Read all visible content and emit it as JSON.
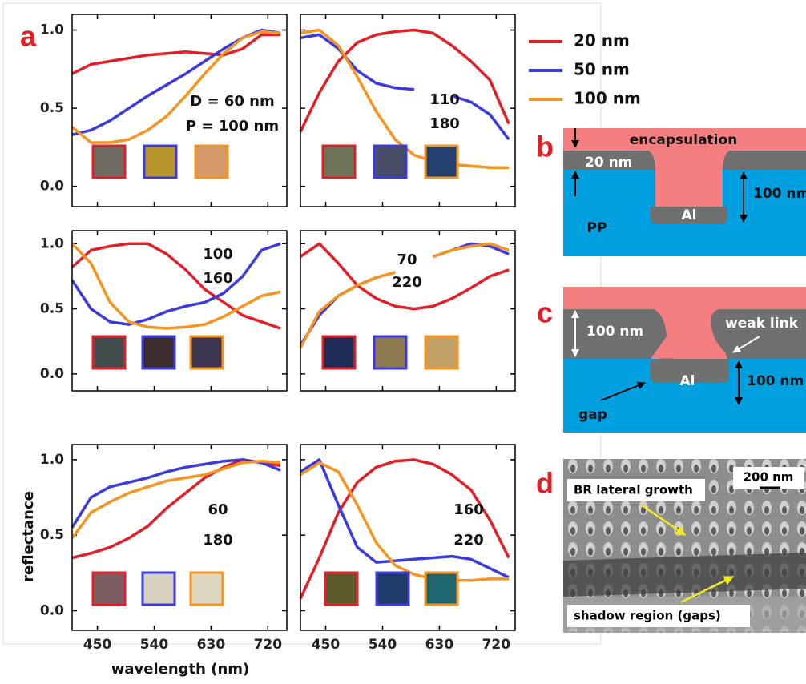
{
  "legend": [
    {
      "name": "20 nm",
      "color": "#e41e26"
    },
    {
      "name": "50 nm",
      "color": "#3a3ae0"
    },
    {
      "name": "100 nm",
      "color": "#f7941d"
    }
  ],
  "panel_labels": [
    "a",
    "b",
    "c",
    "d"
  ],
  "diagram_b": {
    "layer_top": "encapsulation",
    "thickness": "20 nm",
    "depth": "100 nm",
    "metal": "Al",
    "substrate": "PP"
  },
  "diagram_c": {
    "thickness": "100 nm",
    "defect": "weak link",
    "metal": "Al",
    "depth": "100 nm",
    "gap": "gap"
  },
  "image_d": {
    "scale_bar": "200 nm",
    "label_1": "BR lateral growth",
    "label_2": "shadow region (gaps)"
  },
  "chart_data": [
    {
      "type": "line",
      "annotations": [
        "D = 60 nm",
        "P = 100 nm"
      ],
      "swatch_colors": [
        "#6f6a60",
        "#b8962e",
        "#d49a6a"
      ],
      "x": [
        410,
        440,
        470,
        500,
        530,
        560,
        590,
        620,
        650,
        680,
        710,
        740
      ],
      "xlim": [
        410,
        750
      ],
      "xticks": [
        450,
        540,
        630,
        720
      ],
      "ylim": [
        -0.13,
        1.1
      ],
      "yticks": [
        {
          "value": 0,
          "label": "0.0"
        },
        {
          "value": 0.5,
          "label": "0.5"
        },
        {
          "value": 1,
          "label": "1.0"
        }
      ],
      "series": [
        {
          "color": "#e41e26",
          "values": [
            0.72,
            0.78,
            0.8,
            0.82,
            0.84,
            0.85,
            0.86,
            0.85,
            0.84,
            0.88,
            0.97,
            0.97
          ]
        },
        {
          "color": "#3a3ae0",
          "values": [
            0.33,
            0.36,
            0.42,
            0.5,
            0.58,
            0.65,
            0.72,
            0.8,
            0.88,
            0.95,
            1.0,
            0.98
          ]
        },
        {
          "color": "#f7941d",
          "values": [
            0.38,
            0.28,
            0.28,
            0.3,
            0.36,
            0.45,
            0.58,
            0.72,
            0.85,
            0.95,
            0.99,
            0.98
          ]
        }
      ]
    },
    {
      "type": "line",
      "annotations": [
        "110",
        "180"
      ],
      "swatch_colors": [
        "#6d7356",
        "#4a4d68",
        "#23406e"
      ],
      "x": [
        410,
        440,
        470,
        500,
        530,
        560,
        590,
        620,
        650,
        680,
        710,
        740
      ],
      "xlim": [
        410,
        750
      ],
      "xticks": [
        450,
        540,
        630,
        720
      ],
      "ylim": [
        -0.13,
        1.1
      ],
      "yticks": [
        0,
        0.5,
        1
      ],
      "series": [
        {
          "color": "#e41e26",
          "values": [
            0.35,
            0.6,
            0.8,
            0.92,
            0.97,
            0.99,
            1.0,
            0.98,
            0.9,
            0.8,
            0.68,
            0.4
          ]
        },
        {
          "color": "#3a3ae0",
          "values": [
            0.95,
            0.97,
            0.88,
            0.74,
            0.66,
            0.63,
            0.62,
            null,
            0.58,
            0.54,
            0.46,
            0.3
          ]
        },
        {
          "color": "#f7941d",
          "values": [
            0.98,
            1.0,
            0.9,
            0.7,
            0.48,
            0.3,
            0.2,
            0.16,
            0.14,
            0.13,
            0.12,
            0.12
          ]
        }
      ]
    },
    {
      "type": "line",
      "annotations": [
        "100",
        "160"
      ],
      "swatch_colors": [
        "#434c4c",
        "#3b2c2e",
        "#3e3550"
      ],
      "x": [
        410,
        440,
        470,
        500,
        530,
        560,
        590,
        620,
        650,
        680,
        710,
        740
      ],
      "xlim": [
        410,
        750
      ],
      "xticks": [
        450,
        540,
        630,
        720
      ],
      "ylim": [
        -0.13,
        1.1
      ],
      "yticks": [
        {
          "value": 0,
          "label": "0.0"
        },
        {
          "value": 0.5,
          "label": "0.5"
        },
        {
          "value": 1,
          "label": "1.0"
        }
      ],
      "series": [
        {
          "color": "#e41e26",
          "values": [
            0.82,
            0.95,
            0.98,
            1.0,
            1.0,
            0.92,
            0.8,
            0.65,
            0.55,
            0.45,
            0.4,
            0.35
          ]
        },
        {
          "color": "#3a3ae0",
          "values": [
            0.72,
            0.5,
            0.4,
            0.38,
            0.42,
            0.48,
            0.52,
            0.55,
            0.62,
            0.75,
            0.95,
            1.0
          ]
        },
        {
          "color": "#f7941d",
          "values": [
            1.0,
            0.85,
            0.55,
            0.4,
            0.36,
            0.35,
            0.36,
            0.38,
            0.44,
            0.52,
            0.6,
            0.63
          ]
        }
      ]
    },
    {
      "type": "line",
      "annotations": [
        "70",
        "220"
      ],
      "swatch_colors": [
        "#1f2c55",
        "#8f7a52",
        "#c2a166"
      ],
      "x": [
        410,
        440,
        470,
        500,
        530,
        560,
        590,
        620,
        650,
        680,
        710,
        740
      ],
      "xlim": [
        410,
        750
      ],
      "xticks": [
        450,
        540,
        630,
        720
      ],
      "ylim": [
        -0.13,
        1.1
      ],
      "yticks": [
        0,
        0.5,
        1
      ],
      "series": [
        {
          "color": "#e41e26",
          "values": [
            0.9,
            1.0,
            0.85,
            0.68,
            0.58,
            0.52,
            0.5,
            0.52,
            0.58,
            0.66,
            0.75,
            0.8
          ]
        },
        {
          "color": "#3a3ae0",
          "values": [
            0.22,
            0.45,
            0.6,
            0.68,
            0.74,
            0.78,
            null,
            0.9,
            0.95,
            1.0,
            0.98,
            0.92
          ]
        },
        {
          "color": "#f7941d",
          "values": [
            0.2,
            0.48,
            0.6,
            0.68,
            0.74,
            0.78,
            null,
            0.9,
            0.95,
            0.98,
            1.0,
            0.95
          ]
        }
      ]
    },
    {
      "type": "line",
      "annotations": [
        "60",
        "180"
      ],
      "swatch_colors": [
        "#7c5e62",
        "#d6d2bd",
        "#ddd6c0"
      ],
      "xlabel": "wavelength (nm)",
      "ylabel": "reflectance",
      "x": [
        410,
        440,
        470,
        500,
        530,
        560,
        590,
        620,
        650,
        680,
        710,
        740
      ],
      "xlim": [
        410,
        750
      ],
      "xticks": [
        450,
        540,
        630,
        720
      ],
      "ylim": [
        -0.13,
        1.1
      ],
      "yticks": [
        {
          "value": 0,
          "label": "0.0"
        },
        {
          "value": 0.5,
          "label": "0.5"
        },
        {
          "value": 1,
          "label": "1.0"
        }
      ],
      "series": [
        {
          "color": "#e41e26",
          "values": [
            0.35,
            0.38,
            0.42,
            0.48,
            0.56,
            0.68,
            0.78,
            0.88,
            0.95,
            1.0,
            0.98,
            0.96
          ]
        },
        {
          "color": "#3a3ae0",
          "values": [
            0.55,
            0.75,
            0.82,
            0.85,
            0.88,
            0.92,
            0.95,
            0.97,
            0.99,
            1.0,
            0.98,
            0.93
          ]
        },
        {
          "color": "#f7941d",
          "values": [
            0.48,
            0.65,
            0.72,
            0.78,
            0.82,
            0.86,
            0.88,
            0.9,
            0.94,
            0.98,
            0.99,
            0.98
          ]
        }
      ]
    },
    {
      "type": "line",
      "annotations": [
        "160",
        "220"
      ],
      "swatch_colors": [
        "#5a5a2a",
        "#1d3b66",
        "#1f6670"
      ],
      "x": [
        410,
        440,
        470,
        500,
        530,
        560,
        590,
        620,
        650,
        680,
        710,
        740
      ],
      "xlim": [
        410,
        750
      ],
      "xticks": [
        450,
        540,
        630,
        720
      ],
      "ylim": [
        -0.13,
        1.1
      ],
      "yticks": [
        0,
        0.5,
        1
      ],
      "series": [
        {
          "color": "#e41e26",
          "values": [
            0.08,
            0.35,
            0.65,
            0.85,
            0.95,
            0.99,
            1.0,
            0.97,
            0.9,
            0.8,
            0.6,
            0.35
          ]
        },
        {
          "color": "#3a3ae0",
          "values": [
            0.92,
            1.0,
            0.7,
            0.42,
            0.32,
            0.33,
            0.34,
            0.35,
            0.36,
            0.34,
            0.28,
            0.22
          ]
        },
        {
          "color": "#f7941d",
          "values": [
            0.9,
            0.98,
            0.92,
            0.7,
            0.45,
            0.3,
            0.24,
            0.21,
            0.2,
            0.2,
            0.21,
            0.21
          ]
        }
      ]
    }
  ]
}
